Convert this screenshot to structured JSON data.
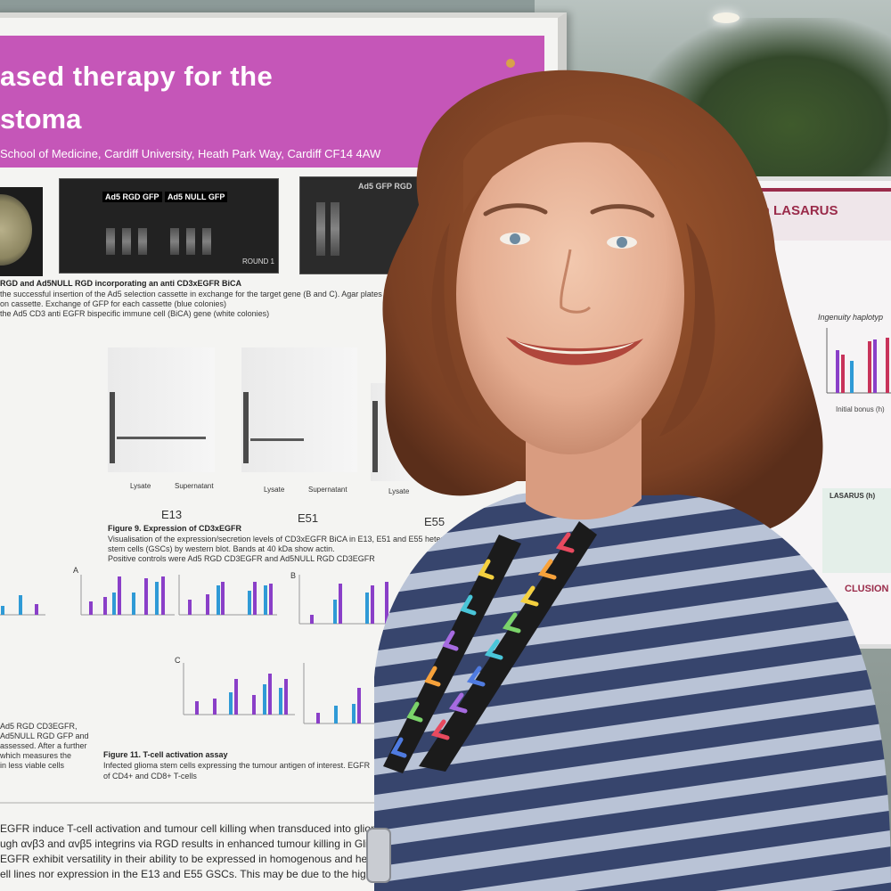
{
  "poster": {
    "title_line1": "ased therapy for the",
    "title_line2": "stoma",
    "affiliation": "School of Medicine, Cardiff University, Heath Park Way, Cardiff CF14 4AW",
    "gel_labels": [
      "Ad5 RGD GFP",
      "Ad5 NULL GFP",
      "Ad5 GFP RGD"
    ],
    "gel_footer": "ROUND 1",
    "section_heading": "RGD and Ad5NULL RGD incorporating an anti CD3xEGFR BiCA",
    "section_caption_1": "the successful insertion of the Ad5 selection cassette in exchange for the target gene (B and C). Agar plates",
    "section_caption_2": "on cassette. Exchange of GFP for each cassette (blue colonies)",
    "section_caption_3": "the Ad5 CD3 anti EGFR bispecific immune cell (BiCA) gene (white colonies)",
    "blot_sublabels": [
      "Lysate",
      "Supernatant",
      "Lysate",
      "Supernatant",
      "Lysate"
    ],
    "cell_lines": [
      "E13",
      "E51",
      "E55"
    ],
    "figure9_title": "Figure 9. Expression of CD3xEGFR",
    "figure9_caption_1": "Visualisation of the expression/secretion levels of CD3xEGFR BiCA in E13, E51 and E55 heterogeneous",
    "figure9_caption_2": "stem cells (GSCs) by western blot. Bands at 40 kDa show actin.",
    "figure9_caption_3": "Positive controls were Ad5 RGD CD3EGFR and Ad5NULL RGD CD3EGFR",
    "panel_letters": [
      "A",
      "B",
      "C"
    ],
    "figure11_title": "Figure 11. T-cell activation assay",
    "figure11_caption_1": "Infected glioma stem cells expressing the tumour antigen of interest. EGFR",
    "figure11_caption_2": "of CD4+ and CD8+ T-cells",
    "left_caption": [
      "Ad5 RGD CD3EGFR,",
      "Ad5NULL RGD GFP and",
      "assessed. After a further",
      "which measures the",
      "in less viable cells"
    ],
    "bottom_text": [
      "EGFR induce T-cell activation and tumour cell killing when transduced into glioma stem",
      "ugh αvβ3 and αvβ5 integrins via RGD results in enhanced tumour killing in Glioma cells",
      "EGFR exhibit versatility in their ability to be expressed in homogenous and heterogenous",
      "ell lines nor expression in the E13 and E55 GSCs. This may be due to the high het"
    ]
  },
  "poster2": {
    "title": "ilum LASARUS",
    "chart_caption": "Ingenuity haplotyp",
    "axis_label": "Initial bonus (h)",
    "table_header": "LASARUS (h)",
    "conclusion_heading": "CLUSION"
  },
  "colors": {
    "poster_header": "#c556b8",
    "poster_bg": "#f4f4f2",
    "bar_purple": "#8a3fc8",
    "bar_blue": "#2f9ad6",
    "poster2_accent": "#9a2b4a",
    "sweater_navy": "#37456d",
    "sweater_light": "#b8c2d6",
    "hair": "#8a4b2a"
  }
}
